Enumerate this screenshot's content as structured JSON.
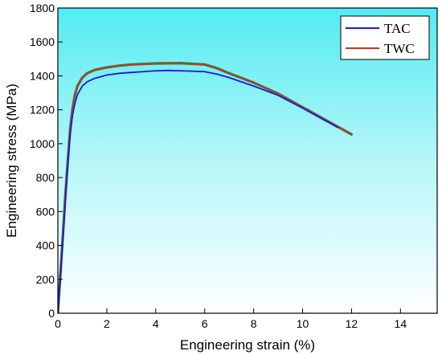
{
  "chart_data": {
    "type": "line",
    "xlabel": "Engineering strain (%)",
    "ylabel": "Engineering stress (MPa)",
    "xlim": [
      0,
      15.5
    ],
    "ylim": [
      0,
      1800
    ],
    "x_ticks": [
      0,
      2,
      4,
      6,
      8,
      10,
      12,
      14
    ],
    "y_ticks": [
      0,
      200,
      400,
      600,
      800,
      1000,
      1200,
      1400,
      1600,
      1800
    ],
    "grid": false,
    "legend_position": "top-right",
    "background": "cyan-to-white vertical gradient",
    "series": [
      {
        "name": "TAC",
        "color": "#1a1adb",
        "x": [
          0,
          0.1,
          0.2,
          0.3,
          0.4,
          0.5,
          0.6,
          0.7,
          0.8,
          1.0,
          1.2,
          1.5,
          2.0,
          2.5,
          3.0,
          4.0,
          4.5,
          5.0,
          6.0,
          6.5,
          7.0,
          8.0,
          9.0,
          10.0,
          11.0,
          11.45
        ],
        "y": [
          0,
          200,
          420,
          640,
          860,
          1050,
          1170,
          1240,
          1290,
          1340,
          1365,
          1385,
          1405,
          1415,
          1420,
          1430,
          1432,
          1430,
          1425,
          1410,
          1390,
          1340,
          1285,
          1210,
          1130,
          1095
        ]
      },
      {
        "name": "TWC",
        "color": "#c0392b",
        "x": [
          0,
          0.1,
          0.2,
          0.3,
          0.4,
          0.5,
          0.6,
          0.7,
          0.8,
          1.0,
          1.2,
          1.5,
          2.0,
          2.5,
          3.0,
          4.0,
          5.0,
          6.0,
          6.5,
          7.0,
          8.0,
          9.0,
          10.0,
          11.0,
          12.0
        ],
        "y": [
          0,
          220,
          450,
          680,
          890,
          1080,
          1210,
          1290,
          1340,
          1390,
          1415,
          1435,
          1450,
          1460,
          1467,
          1473,
          1475,
          1467,
          1445,
          1415,
          1360,
          1295,
          1215,
          1135,
          1055
        ]
      }
    ]
  }
}
